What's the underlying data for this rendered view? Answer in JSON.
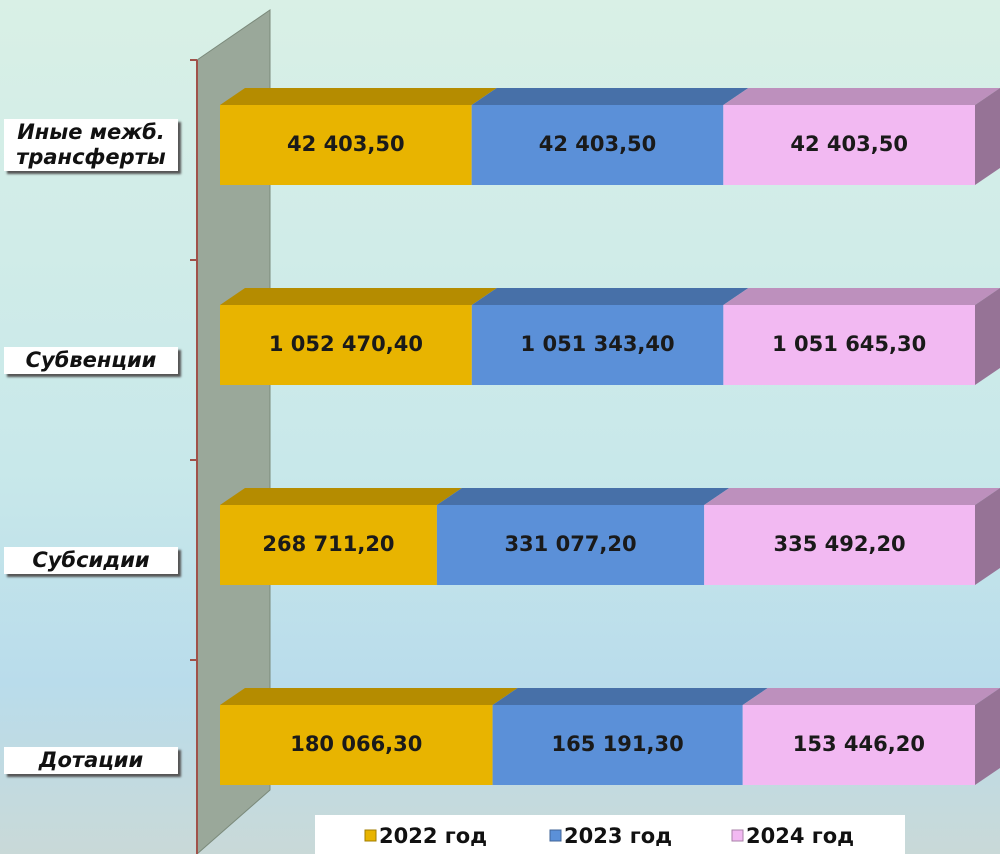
{
  "chart_data": {
    "type": "bar",
    "orientation": "horizontal",
    "stacked": "percent",
    "categories": [
      "Иные межб. трансферты",
      "Субвенции",
      "Субсидии",
      "Дотации"
    ],
    "series": [
      {
        "name": "2022 год",
        "color": "#e8b400",
        "values": [
          42403.5,
          1052470.4,
          268711.2,
          180066.3
        ],
        "value_labels": [
          "42 403,50",
          "1 052 470,40",
          "268 711,20",
          "180 066,30"
        ]
      },
      {
        "name": "2023 год",
        "color": "#5b90d8",
        "values": [
          42403.5,
          1051343.4,
          331077.2,
          165191.3
        ],
        "value_labels": [
          "42 403,50",
          "1 051 343,40",
          "331 077,20",
          "165 191,30"
        ]
      },
      {
        "name": "2024 год",
        "color": "#f2b9f2",
        "values": [
          42403.5,
          1051645.3,
          335492.2,
          153446.2
        ],
        "value_labels": [
          "42 403,50",
          "1 051 645,30",
          "335 492,20",
          "153 446,20"
        ]
      }
    ],
    "legend": "bottom"
  }
}
